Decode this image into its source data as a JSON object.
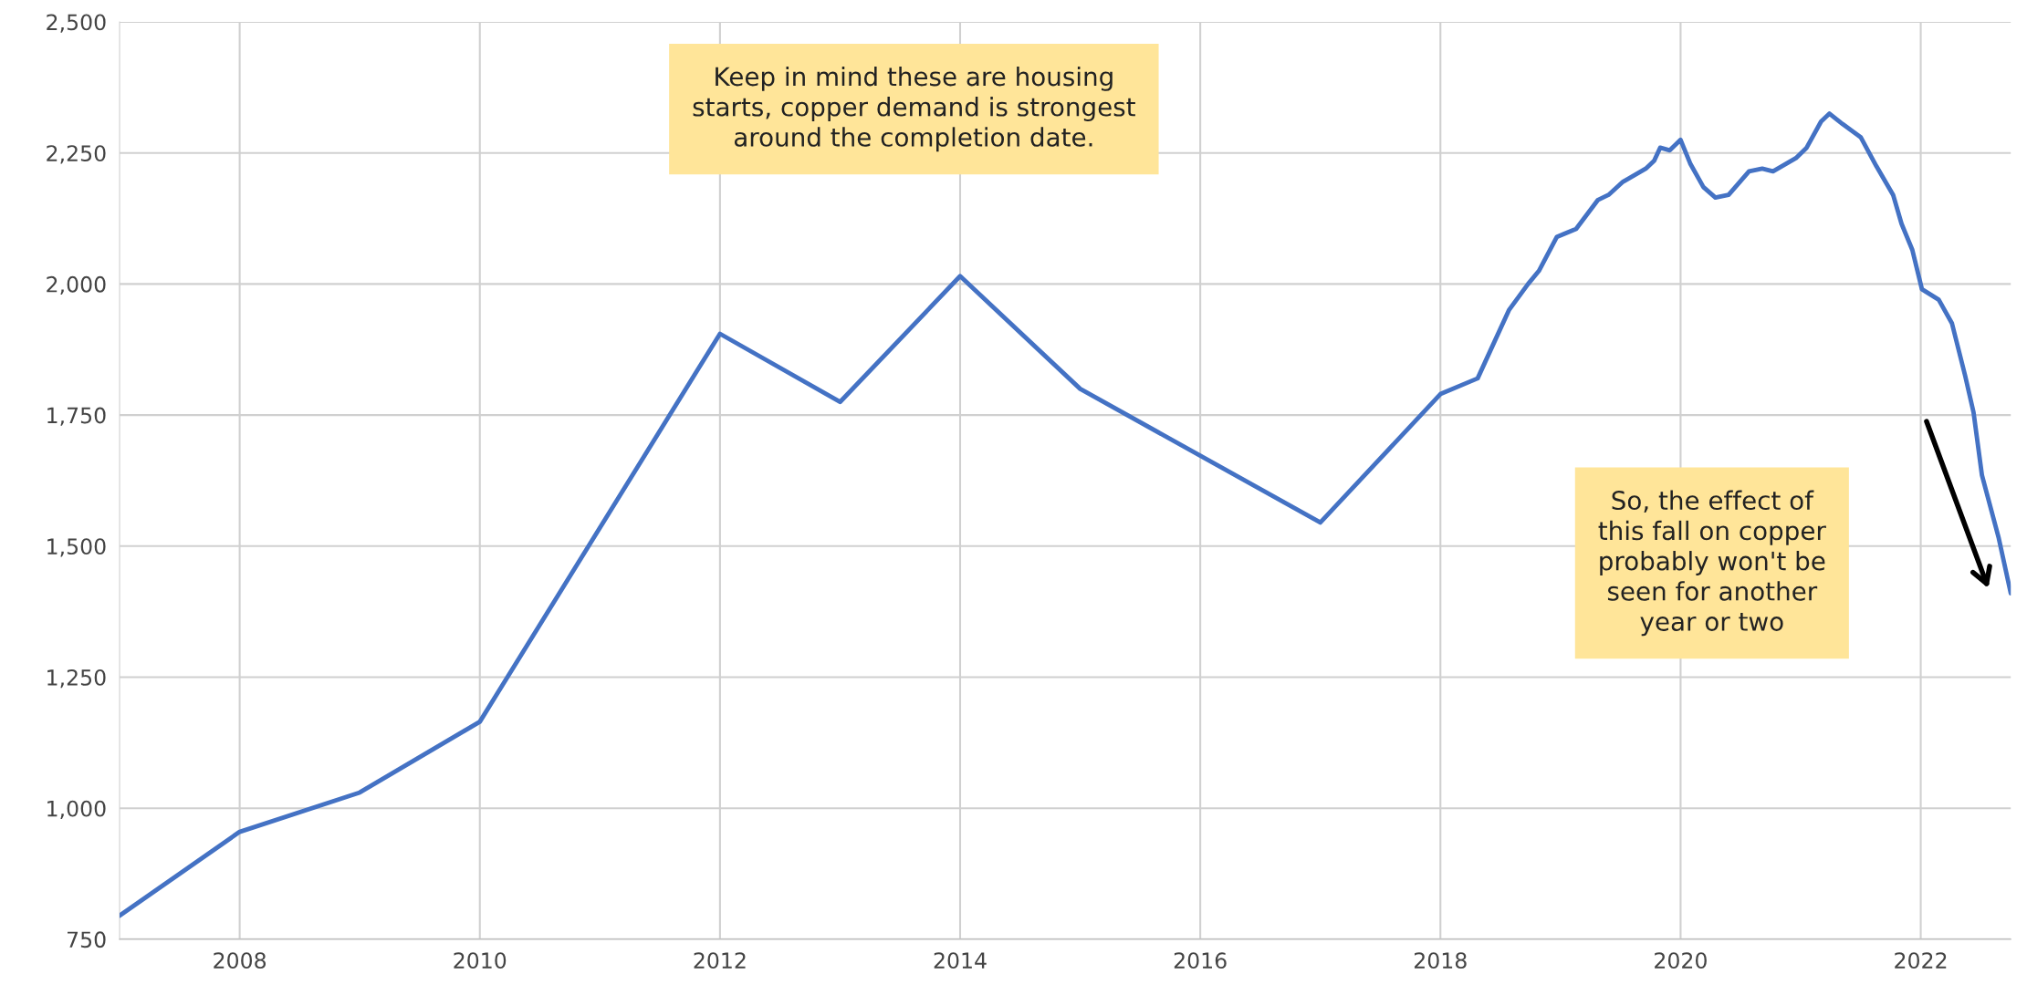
{
  "chart_data": {
    "type": "line",
    "series": [
      {
        "color": "#4472c4",
        "x": [
          2007,
          2008,
          2009,
          2010,
          2012,
          2013,
          2014,
          2015,
          2017,
          2018,
          2018.31,
          2018.43,
          2018.57,
          2018.73,
          2018.82,
          2018.97,
          2019.13,
          2019.31,
          2019.4,
          2019.52,
          2019.71,
          2019.78,
          2019.83,
          2019.91,
          2020.0,
          2020.08,
          2020.19,
          2020.29,
          2020.4,
          2020.57,
          2020.68,
          2020.77,
          2020.96,
          2021.05,
          2021.17,
          2021.24,
          2021.35,
          2021.5,
          2021.63,
          2021.77,
          2021.84,
          2021.93,
          2022.01,
          2022.15,
          2022.26,
          2022.37,
          2022.44,
          2022.51,
          2022.65,
          2022.75
        ],
        "values": [
          795,
          955,
          1030,
          1165,
          1905,
          1775,
          2015,
          1800,
          1545,
          1790,
          1820,
          1880,
          1950,
          2000,
          2025,
          2090,
          2105,
          2160,
          2170,
          2195,
          2220,
          2235,
          2260,
          2255,
          2275,
          2230,
          2185,
          2165,
          2170,
          2215,
          2220,
          2215,
          2240,
          2260,
          2310,
          2325,
          2305,
          2280,
          2225,
          2170,
          2115,
          2065,
          1990,
          1970,
          1925,
          1825,
          1755,
          1635,
          1515,
          1410
        ]
      }
    ],
    "xlim": [
      2007,
      2022.75
    ],
    "xticks": [
      2008,
      2010,
      2012,
      2014,
      2016,
      2018,
      2020,
      2022
    ],
    "ylim": [
      750,
      2500
    ],
    "yticks": [
      {
        "value": 750,
        "label": "750"
      },
      {
        "value": 1000,
        "label": "1,000"
      },
      {
        "value": 1250,
        "label": "1,250"
      },
      {
        "value": 1500,
        "label": "1,500"
      },
      {
        "value": 1750,
        "label": "1,750"
      },
      {
        "value": 2000,
        "label": "2,000"
      },
      {
        "value": 2250,
        "label": "2,250"
      },
      {
        "value": 2500,
        "label": "2,500"
      }
    ],
    "grid": true,
    "marker": "none",
    "line_style": "solid",
    "annotations": [
      "Keep in mind these are housing\nstarts, copper demand is strongest\naround the completion date.",
      "So, the effect of\nthis fall on copper\nprobably won't be\nseen for another\nyear or two"
    ]
  }
}
